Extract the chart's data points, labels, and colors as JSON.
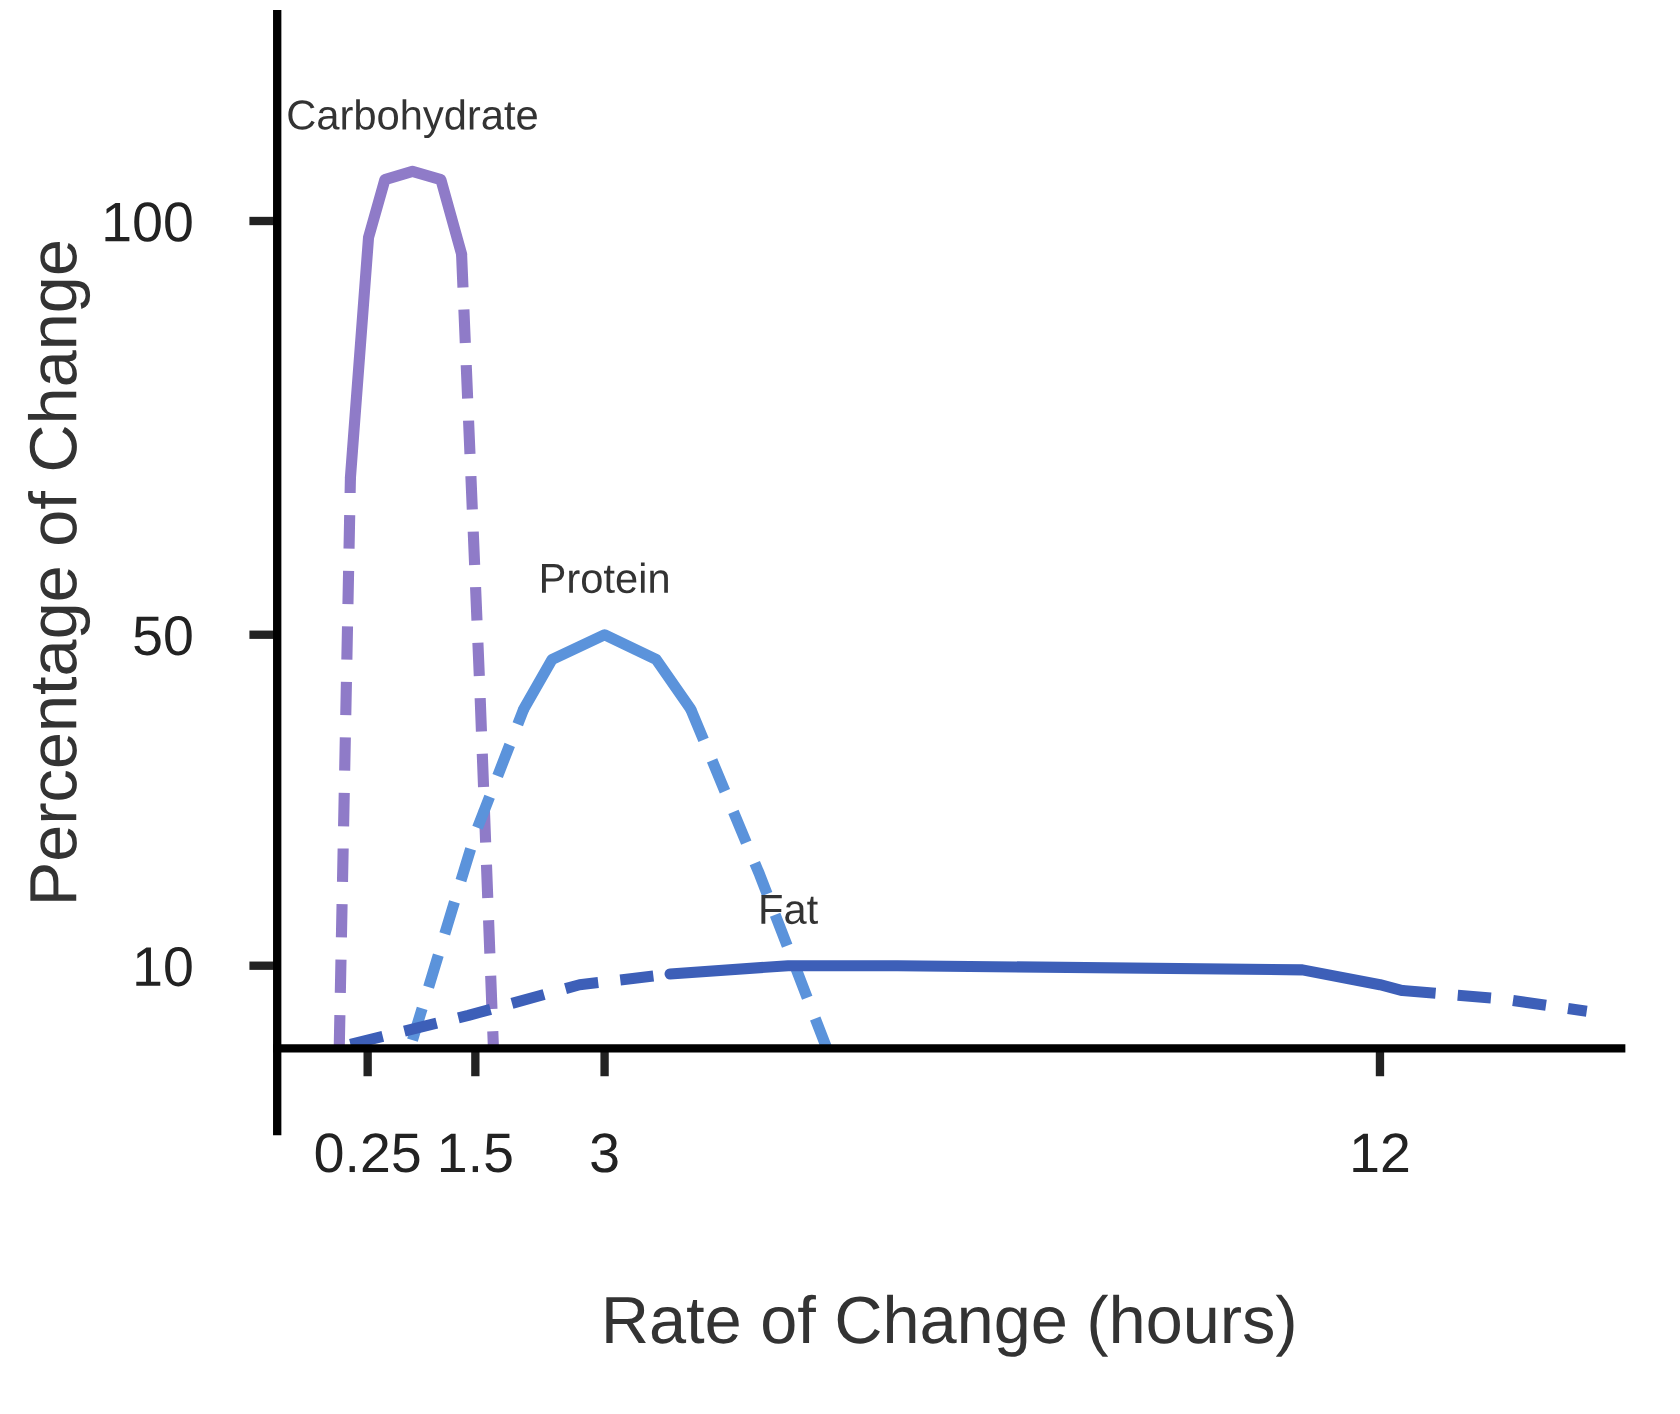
{
  "chart_data": {
    "type": "line",
    "xlabel": "Rate of Change (hours)",
    "ylabel": "Percentage of Change",
    "xlim": [
      -0.8,
      14.8
    ],
    "ylim": [
      -10,
      125
    ],
    "xticks": [
      0.25,
      1.5,
      3,
      12
    ],
    "yticks": [
      10,
      50,
      100
    ],
    "grid": false,
    "legend": false,
    "marker": "none",
    "series": [
      {
        "color": "#8f7bc8",
        "line_style": "dashed",
        "x": [
          -0.08,
          0.05
        ],
        "values": [
          0,
          69
        ]
      },
      {
        "name": "Carbohydrate",
        "color": "#8f7bc8",
        "line_style": "solid",
        "x": [
          0.05,
          0.26,
          0.45,
          0.77,
          1.1,
          1.34
        ],
        "values": [
          69,
          98,
          105,
          106,
          105,
          96
        ]
      },
      {
        "color": "#8f7bc8",
        "line_style": "dashed",
        "x": [
          1.34,
          1.55,
          1.71
        ],
        "values": [
          96,
          44,
          0
        ]
      },
      {
        "color": "#5b93db",
        "line_style": "dashed",
        "x": [
          0.77,
          1.5,
          2.06
        ],
        "values": [
          1,
          26,
          41
        ]
      },
      {
        "name": "Protein",
        "color": "#5b93db",
        "line_style": "solid",
        "x": [
          2.06,
          2.39,
          3.0,
          3.6,
          4.0
        ],
        "values": [
          41,
          47,
          50,
          47,
          41
        ]
      },
      {
        "color": "#5b93db",
        "line_style": "dashed",
        "x": [
          4.0,
          4.8,
          5.58
        ],
        "values": [
          41,
          21,
          0
        ]
      },
      {
        "color": "#3d5fb8",
        "line_style": "dashed",
        "x": [
          0.05,
          1.42,
          2.71,
          3.76
        ],
        "values": [
          0.5,
          4,
          7.7,
          9
        ]
      },
      {
        "name": "Fat",
        "color": "#3d5fb8",
        "line_style": "solid",
        "x": [
          3.76,
          5.13,
          6.4,
          11.1,
          12,
          12.26
        ],
        "values": [
          9,
          10,
          10,
          9.5,
          7.7,
          7
        ]
      },
      {
        "color": "#3d5fb8",
        "line_style": "dashed",
        "x": [
          12.26,
          13.4,
          14.4
        ],
        "values": [
          7,
          6,
          4.5
        ]
      }
    ]
  }
}
